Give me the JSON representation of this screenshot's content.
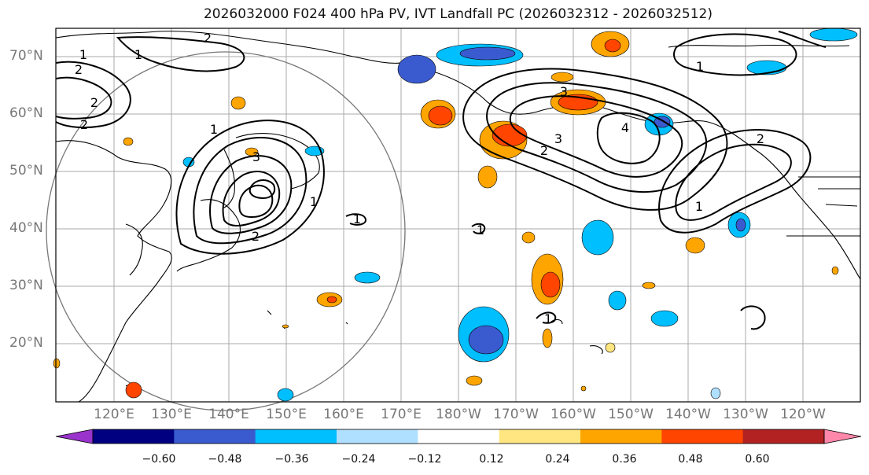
{
  "title": "2026032000 F024 400 hPa PV, IVT Landfall PC (2026032312 - 2026032512)",
  "lat_labels": [
    "70°N",
    "60°N",
    "50°N",
    "40°N",
    "30°N",
    "20°N"
  ],
  "lon_labels": [
    "120°E",
    "130°E",
    "140°E",
    "150°E",
    "160°E",
    "170°E",
    "180°W",
    "170°W",
    "160°W",
    "150°W",
    "140°W",
    "130°W",
    "120°W"
  ],
  "contour_labels": [
    "1",
    "1",
    "2",
    "2",
    "2",
    "2",
    "3",
    "1",
    "1",
    "1",
    "1",
    "2",
    "3",
    "1",
    "4",
    "2",
    "3",
    "1",
    "1",
    "2"
  ],
  "colorbar": {
    "ticks": [
      "−0.60",
      "−0.48",
      "−0.36",
      "−0.24",
      "−0.12",
      "0.12",
      "0.24",
      "0.36",
      "0.48",
      "0.60"
    ],
    "colors": [
      "#9933cc",
      "#000080",
      "#3a5bd0",
      "#00bfff",
      "#b0e0ff",
      "#ffffff",
      "#ffe680",
      "#ffa500",
      "#ff4500",
      "#b22222",
      "#ff88aa"
    ]
  }
}
